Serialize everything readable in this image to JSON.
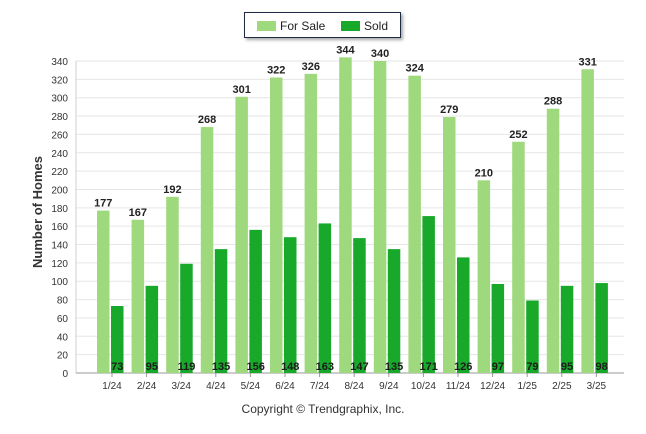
{
  "chart_data": {
    "type": "bar",
    "categories": [
      "1/24",
      "2/24",
      "3/24",
      "4/24",
      "5/24",
      "6/24",
      "7/24",
      "8/24",
      "9/24",
      "10/24",
      "11/24",
      "12/24",
      "1/25",
      "2/25",
      "3/25"
    ],
    "series": [
      {
        "name": "For Sale",
        "color": "#9ed97d",
        "values": [
          177,
          167,
          192,
          268,
          301,
          322,
          326,
          344,
          340,
          324,
          279,
          210,
          252,
          288,
          331
        ]
      },
      {
        "name": "Sold",
        "color": "#18a82a",
        "values": [
          73,
          95,
          119,
          135,
          156,
          148,
          163,
          147,
          135,
          171,
          126,
          97,
          79,
          95,
          98
        ]
      }
    ],
    "ylabel": "Number of Homes",
    "xlabel": "",
    "ylim": [
      0,
      340
    ],
    "yticks": [
      0,
      20,
      40,
      60,
      80,
      100,
      120,
      140,
      160,
      180,
      200,
      220,
      240,
      260,
      280,
      300,
      320,
      340
    ],
    "grid": true,
    "legend": "top-center"
  },
  "footer": {
    "copyright": "Copyright © Trendgraphix, Inc."
  }
}
